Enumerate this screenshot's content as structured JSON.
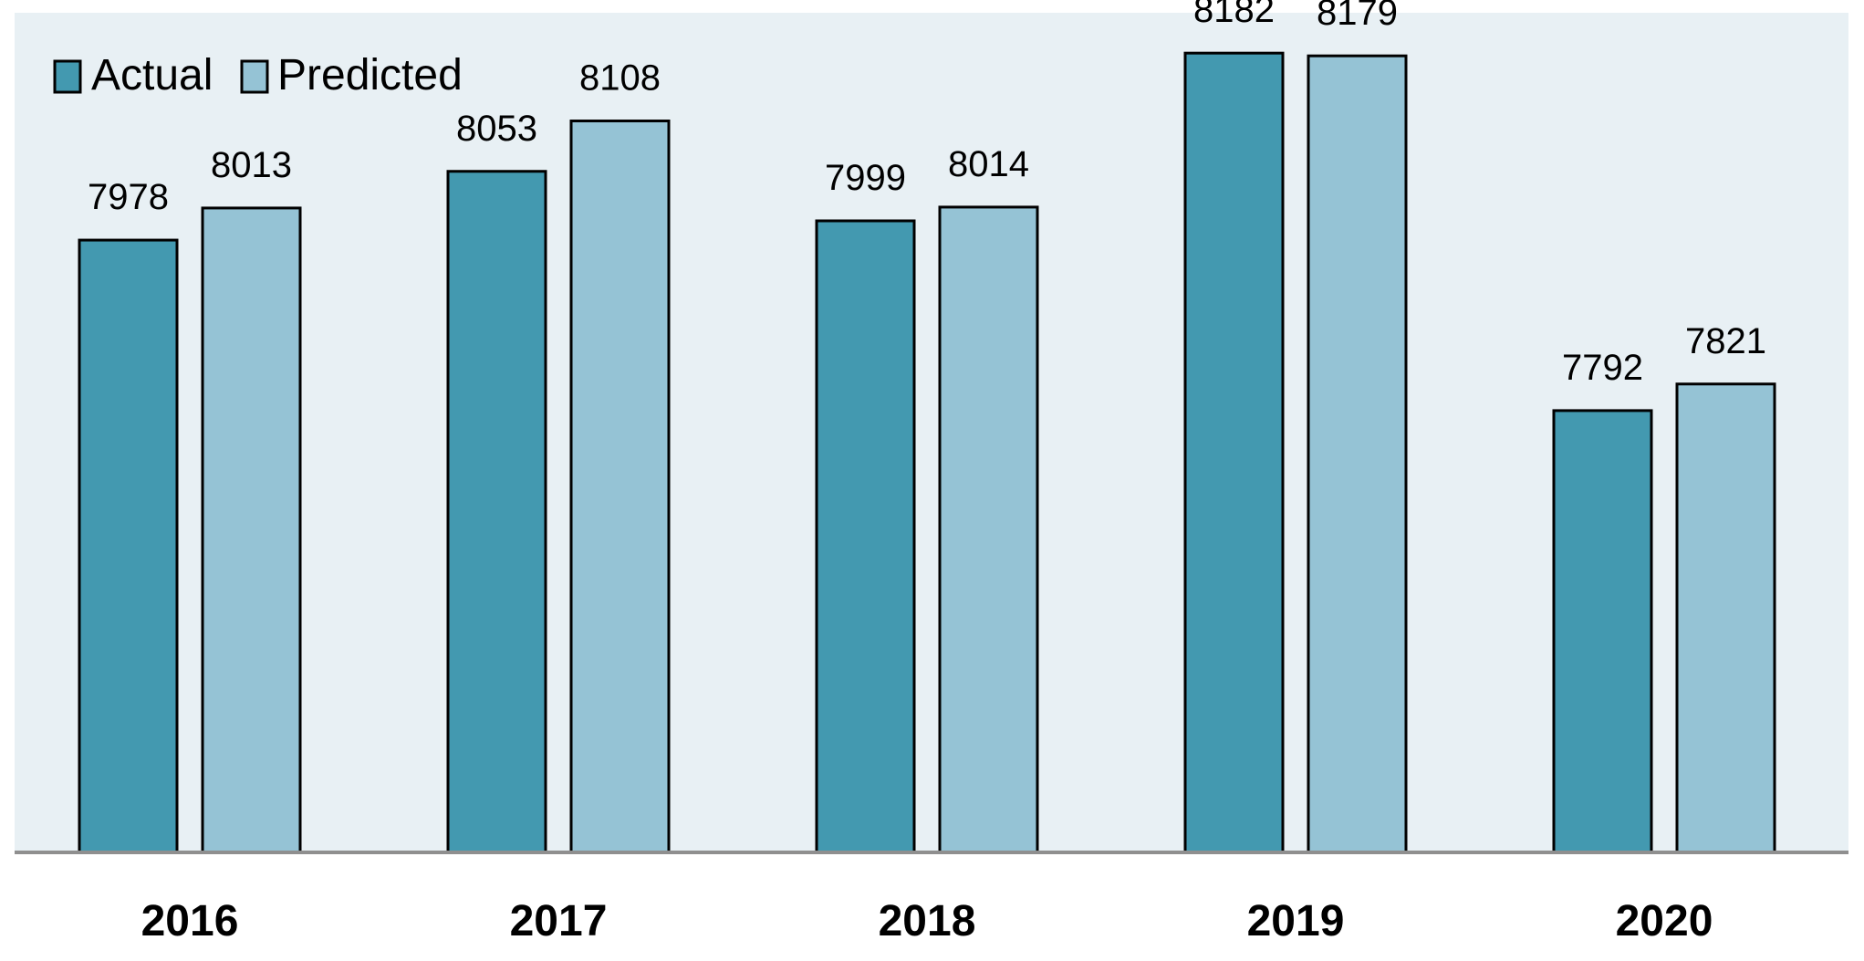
{
  "colors": {
    "plot_background": "#e8f0f4",
    "actual": "#4399b0",
    "predicted": "#95c3d5",
    "bar_outline": "#000000",
    "axis_line": "#8f8f8f"
  },
  "chart_data": {
    "type": "bar",
    "title": "",
    "xlabel": "",
    "ylabel": "",
    "categories": [
      "2016",
      "2017",
      "2018",
      "2019",
      "2020"
    ],
    "series": [
      {
        "name": "Actual",
        "values": [
          7978,
          8053,
          7999,
          8182,
          7792
        ]
      },
      {
        "name": "Predicted",
        "values": [
          8013,
          8108,
          8014,
          8179,
          7821
        ]
      }
    ],
    "data_labels": true,
    "ylim": [
      7310,
      8225
    ],
    "grid": false,
    "y_axis_visible": false,
    "legend": {
      "placement": "top-left",
      "orientation": "horizontal"
    }
  }
}
